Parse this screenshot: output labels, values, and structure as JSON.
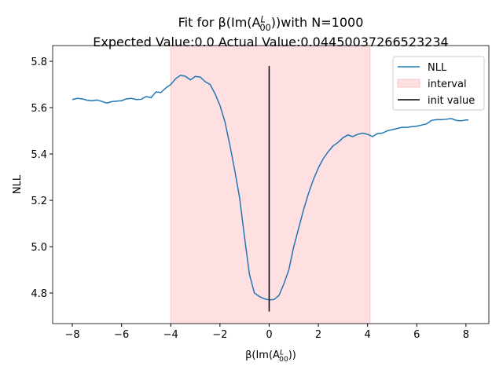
{
  "chart_data": {
    "type": "line",
    "title": [
      "Fit for β(Im(A",
      "L",
      "00",
      "))with N=1000"
    ],
    "subtitle": "Expected Value:0.0 Actual Value:0.04450037266523234",
    "xlabel": [
      "β(Im(A",
      "L",
      "00",
      "))"
    ],
    "ylabel": "NLL",
    "xlim": [
      -8.8,
      8.93
    ],
    "ylim": [
      4.668,
      5.868
    ],
    "xticks": [
      {
        "value": -8,
        "label": "−8"
      },
      {
        "value": -6,
        "label": "−6"
      },
      {
        "value": -4,
        "label": "−4"
      },
      {
        "value": -2,
        "label": "−2"
      },
      0,
      2,
      4,
      6,
      8
    ],
    "yticks": [
      4.8,
      {
        "value": 5.0,
        "label": "5.0"
      },
      5.2,
      5.4,
      5.6,
      5.8
    ],
    "grid": false,
    "legend": "upper right",
    "series": [
      {
        "name": "NLL",
        "color": "#1f77b4",
        "x": [
          -8,
          -7.8,
          -7.6,
          -7.4,
          -7.2,
          -7,
          -6.8,
          -6.6,
          -6.4,
          -6.2,
          -6,
          -5.8,
          -5.6,
          -5.4,
          -5.2,
          -5,
          -4.8,
          -4.6,
          -4.4,
          -4.2,
          -4,
          -3.8,
          -3.6,
          -3.4,
          -3.2,
          -3,
          -2.8,
          -2.6,
          -2.4,
          -2.2,
          -2,
          -1.8,
          -1.6,
          -1.4,
          -1.2,
          -1,
          -0.8,
          -0.6,
          -0.4,
          -0.2,
          0,
          0.2,
          0.4,
          0.6,
          0.8,
          1,
          1.2,
          1.4,
          1.6,
          1.8,
          2,
          2.2,
          2.4,
          2.6,
          2.8,
          3,
          3.2,
          3.4,
          3.6,
          3.8,
          4,
          4.2,
          4.4,
          4.6,
          4.8,
          5,
          5.2,
          5.4,
          5.6,
          5.8,
          6,
          6.2,
          6.4,
          6.6,
          6.8,
          7,
          7.2,
          7.4,
          7.6,
          7.8,
          8,
          8.1
        ],
        "values": [
          5.635,
          5.64,
          5.638,
          5.632,
          5.63,
          5.633,
          5.627,
          5.62,
          5.626,
          5.628,
          5.63,
          5.638,
          5.64,
          5.635,
          5.636,
          5.648,
          5.643,
          5.668,
          5.665,
          5.685,
          5.7,
          5.725,
          5.74,
          5.735,
          5.72,
          5.735,
          5.732,
          5.712,
          5.7,
          5.66,
          5.61,
          5.54,
          5.44,
          5.33,
          5.21,
          5.04,
          4.88,
          4.8,
          4.785,
          4.775,
          4.77,
          4.772,
          4.79,
          4.84,
          4.9,
          5.0,
          5.08,
          5.16,
          5.23,
          5.29,
          5.34,
          5.38,
          5.41,
          5.435,
          5.45,
          5.47,
          5.482,
          5.475,
          5.485,
          5.49,
          5.485,
          5.475,
          5.488,
          5.49,
          5.5,
          5.505,
          5.51,
          5.515,
          5.515,
          5.518,
          5.52,
          5.525,
          5.53,
          5.545,
          5.548,
          5.548,
          5.55,
          5.553,
          5.545,
          5.543,
          5.547,
          5.547
        ]
      }
    ],
    "spans": [
      {
        "name": "interval",
        "xmin": -4,
        "xmax": 4.1,
        "color": "#ffe0e2"
      }
    ],
    "vlines": [
      {
        "name": "init value",
        "x": 0,
        "ymin": 4.72,
        "ymax": 5.78,
        "color": "#000000"
      }
    ]
  }
}
